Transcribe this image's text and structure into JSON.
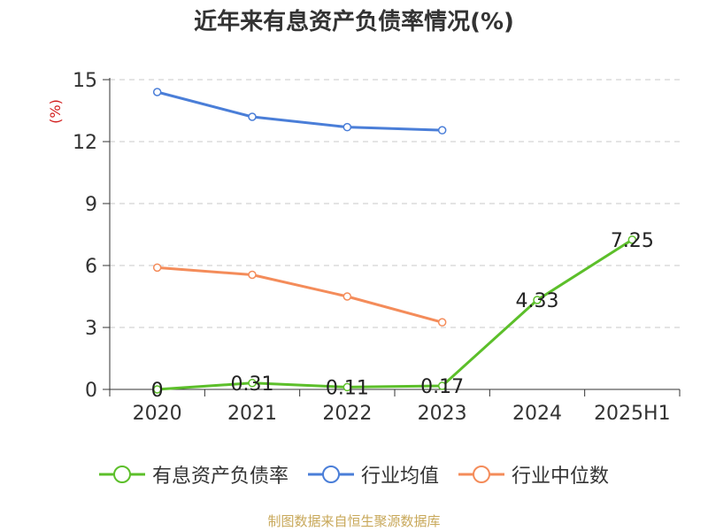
{
  "title": "近年来有息资产负债率情况(%)",
  "source": "制图数据来自恒生聚源数据库",
  "chart_data": {
    "type": "line",
    "title": "近年来有息资产负债率情况(%)",
    "ylabel": "(%)",
    "xlabel": "",
    "categories": [
      "2020",
      "2021",
      "2022",
      "2023",
      "2024",
      "2025H1"
    ],
    "ylim": [
      0,
      15
    ],
    "yticks": [
      0,
      3,
      6,
      9,
      12,
      15
    ],
    "grid": true,
    "legend_position": "bottom",
    "series": [
      {
        "name": "有息资产负债率",
        "color": "#5cbf2a",
        "values": [
          0,
          0.31,
          0.11,
          0.17,
          4.33,
          7.25
        ],
        "labels": [
          "0",
          "0.31",
          "0.11",
          "0.17",
          "4.33",
          "7.25"
        ]
      },
      {
        "name": "行业均值",
        "color": "#4a7ed8",
        "values": [
          14.4,
          13.2,
          12.7,
          12.55,
          null,
          null
        ]
      },
      {
        "name": "行业中位数",
        "color": "#f48c5a",
        "values": [
          5.9,
          5.55,
          4.5,
          3.25,
          null,
          null
        ]
      }
    ]
  }
}
